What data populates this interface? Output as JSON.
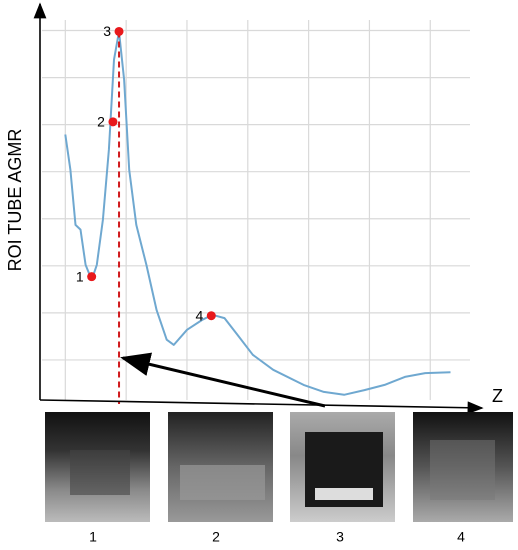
{
  "chart_data": {
    "type": "line",
    "y_label": "ROI TUBE AGMR",
    "x_label": "Z",
    "xlim": [
      0.6,
      7.9
    ],
    "ylim": [
      0,
      8.5
    ],
    "xticks": [
      1,
      2,
      3,
      4,
      5,
      6,
      7,
      8
    ],
    "yticks": [
      1,
      2,
      3,
      4,
      5,
      6,
      7,
      8
    ],
    "grid": true,
    "x": [
      1.0,
      1.083,
      1.167,
      1.25,
      1.333,
      1.433,
      1.517,
      1.617,
      1.717,
      1.8,
      1.883,
      1.967,
      2.05,
      2.167,
      2.333,
      2.5,
      2.667,
      2.783,
      3.0,
      3.25,
      3.417,
      3.617,
      3.833,
      4.083,
      4.417,
      4.917,
      5.25,
      5.583,
      5.917,
      6.25,
      6.583,
      6.917,
      7.333
    ],
    "series": [
      {
        "color": "#6fa8d0",
        "values": [
          5.79,
          5.04,
          3.87,
          3.77,
          3.02,
          2.7,
          3.02,
          3.98,
          5.47,
          7.38,
          7.98,
          6.96,
          5.04,
          3.87,
          3.02,
          2.06,
          1.43,
          1.32,
          1.64,
          1.85,
          1.96,
          1.89,
          1.53,
          1.11,
          0.79,
          0.47,
          0.32,
          0.26,
          0.36,
          0.47,
          0.64,
          0.72,
          0.74
        ]
      }
    ],
    "points": {
      "color": "#e8191c",
      "labels": [
        "1",
        "2",
        "3",
        "4"
      ],
      "x": [
        1.433,
        1.783,
        1.883,
        3.4
      ],
      "y": [
        2.77,
        6.06,
        7.98,
        1.94
      ]
    },
    "marker_line_x": 1.883
  },
  "panels": {
    "labels": [
      "1",
      "2",
      "3",
      "4"
    ]
  }
}
